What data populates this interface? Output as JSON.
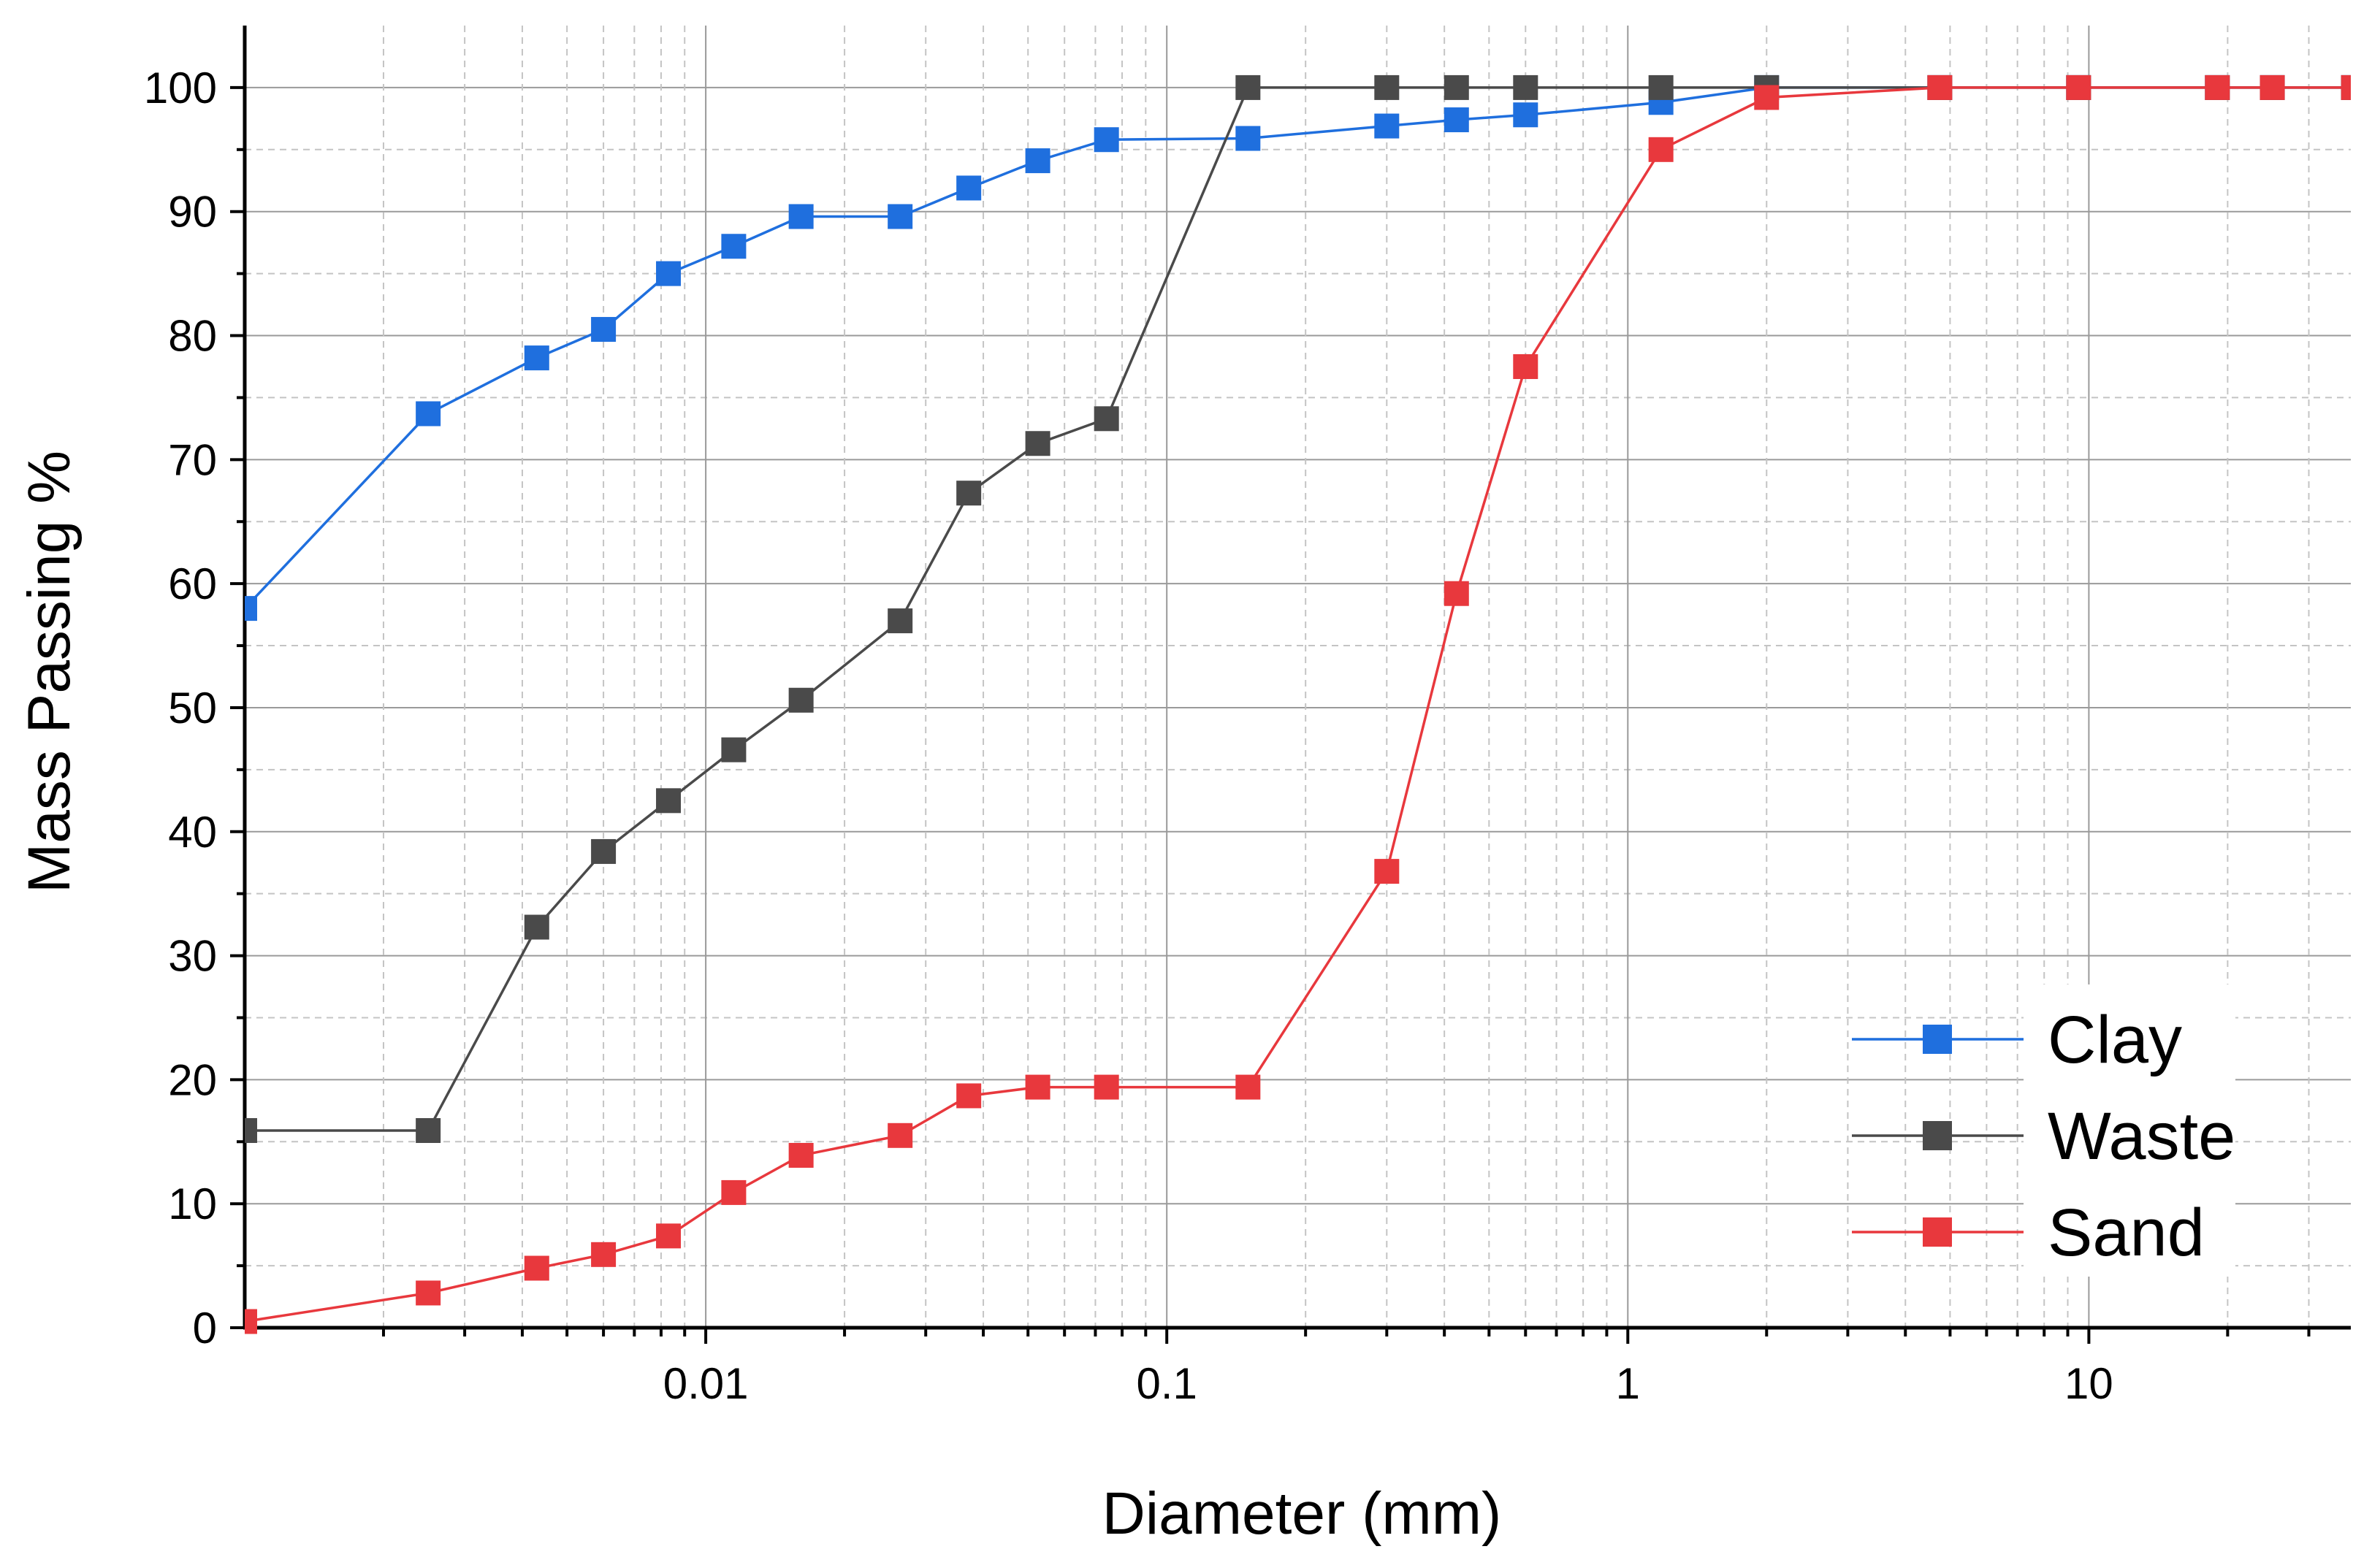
{
  "chart_data": {
    "type": "line",
    "title": "",
    "xlabel": "Diameter (mm)",
    "ylabel": "Mass Passing %",
    "xscale": "log",
    "xlim": [
      0.001,
      37
    ],
    "ylim": [
      0,
      105
    ],
    "grid": true,
    "legend_position": "bottom-right",
    "x_tick_labels": [
      "0.01",
      "0.1",
      "1",
      "10"
    ],
    "x_tick_values": [
      0.01,
      0.1,
      1,
      10
    ],
    "y_tick_labels": [
      "0",
      "10",
      "20",
      "30",
      "40",
      "50",
      "60",
      "70",
      "80",
      "90",
      "100"
    ],
    "y_tick_values": [
      0,
      10,
      20,
      30,
      40,
      50,
      60,
      70,
      80,
      90,
      100
    ],
    "series": [
      {
        "name": "Clay",
        "color": "#1f6fde",
        "x": [
          0.001,
          0.0025,
          0.0043,
          0.006,
          0.0083,
          0.0115,
          0.0161,
          0.0264,
          0.0372,
          0.0525,
          0.074,
          0.15,
          0.3,
          0.425,
          0.6,
          1.18,
          2.0,
          4.75,
          9.5,
          19,
          25,
          37.5
        ],
        "y": [
          58,
          73.7,
          78.2,
          80.5,
          85,
          87.2,
          89.6,
          89.6,
          91.9,
          94.1,
          95.8,
          95.9,
          96.9,
          97.4,
          97.8,
          98.8,
          100,
          100,
          100,
          100,
          100,
          100
        ]
      },
      {
        "name": "Waste",
        "color": "#4a4a4a",
        "x": [
          0.001,
          0.0025,
          0.0043,
          0.006,
          0.0083,
          0.0115,
          0.0161,
          0.0264,
          0.0372,
          0.0525,
          0.074,
          0.15,
          0.3,
          0.425,
          0.6,
          1.18,
          2.0,
          4.75,
          9.5,
          19,
          25,
          37.5
        ],
        "y": [
          15.9,
          15.9,
          32.3,
          38.4,
          42.5,
          46.6,
          50.6,
          57,
          67.3,
          71.3,
          73.3,
          100,
          100,
          100,
          100,
          100,
          100,
          100,
          100,
          100,
          100,
          100
        ]
      },
      {
        "name": "Sand",
        "color": "#e8383d",
        "x": [
          0.001,
          0.0025,
          0.0043,
          0.006,
          0.0083,
          0.0115,
          0.0161,
          0.0264,
          0.0372,
          0.0525,
          0.074,
          0.15,
          0.3,
          0.425,
          0.6,
          1.18,
          2.0,
          4.75,
          9.5,
          19,
          25,
          37.5
        ],
        "y": [
          0.5,
          2.8,
          4.8,
          5.9,
          7.4,
          10.9,
          13.9,
          15.5,
          18.7,
          19.4,
          19.4,
          19.4,
          36.8,
          59.2,
          77.5,
          95,
          99.2,
          100,
          100,
          100,
          100,
          100
        ]
      }
    ]
  }
}
